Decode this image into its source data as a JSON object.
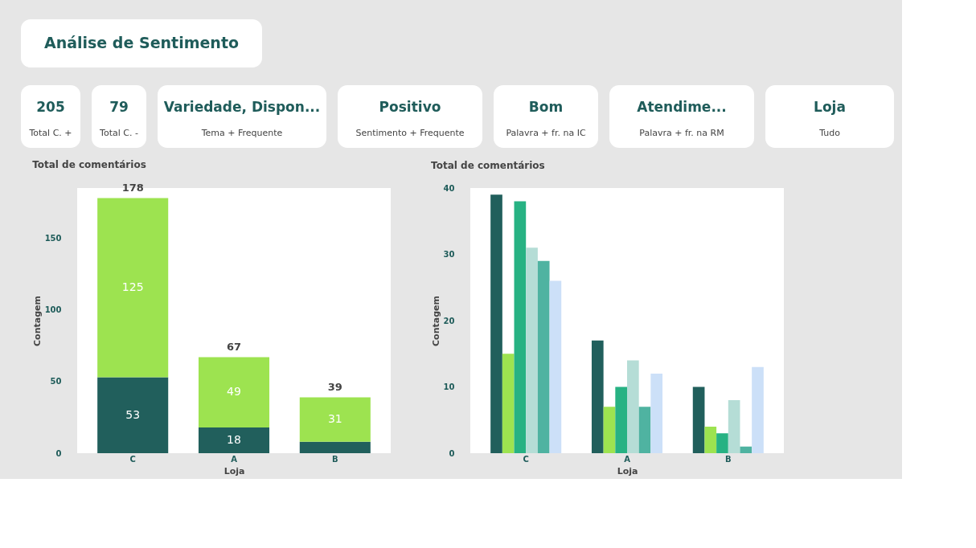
{
  "chart_data": [
    {
      "type": "other",
      "title": "Análise de Sentimento",
      "annotations": [
        "205",
        "Total C. +",
        "79",
        "Total C. -",
        "Variedade, Dispon...",
        "Tema + Frequente",
        "Positivo",
        "Sentimento + Frequente",
        "Bom",
        "Palavra + fr. na IC",
        "Atendime...",
        "Palavra + fr. na RM",
        "Loja",
        "Tudo"
      ]
    },
    {
      "type": "bar",
      "title": "Total de comentários",
      "xlabel": "Loja",
      "ylabel": "Contagem",
      "stacked": true,
      "categories": [
        "C",
        "A",
        "B"
      ],
      "ylim": [
        0,
        185
      ],
      "yticks": [
        0,
        50,
        100,
        150
      ],
      "grid": false,
      "legend": false,
      "totals": [
        "178",
        "67",
        "39"
      ],
      "series": [
        {
          "color": "#215f5c",
          "values": [
            53,
            18,
            8
          ],
          "value_labels": [
            "53",
            "18",
            null
          ]
        },
        {
          "color": "#9de350",
          "values": [
            125,
            49,
            31
          ],
          "value_labels": [
            "125",
            "49",
            "31"
          ]
        }
      ]
    },
    {
      "type": "bar",
      "title": "Total de comentários",
      "xlabel": "Loja",
      "ylabel": "Contagem",
      "categories": [
        "C",
        "A",
        "B"
      ],
      "ylim": [
        0,
        40
      ],
      "yticks": [
        0,
        10,
        20,
        30,
        40
      ],
      "grid": false,
      "legend": false,
      "series": [
        {
          "color": "#215f5c",
          "values": [
            39,
            17,
            10
          ]
        },
        {
          "color": "#9de350",
          "values": [
            15,
            7,
            4
          ]
        },
        {
          "color": "#27b283",
          "values": [
            38,
            10,
            3
          ]
        },
        {
          "color": "#b5ddd6",
          "values": [
            31,
            14,
            8
          ]
        },
        {
          "color": "#4fb3a1",
          "values": [
            29,
            7,
            1
          ]
        },
        {
          "color": "#cce0f8",
          "values": [
            26,
            12,
            13
          ]
        }
      ]
    }
  ]
}
